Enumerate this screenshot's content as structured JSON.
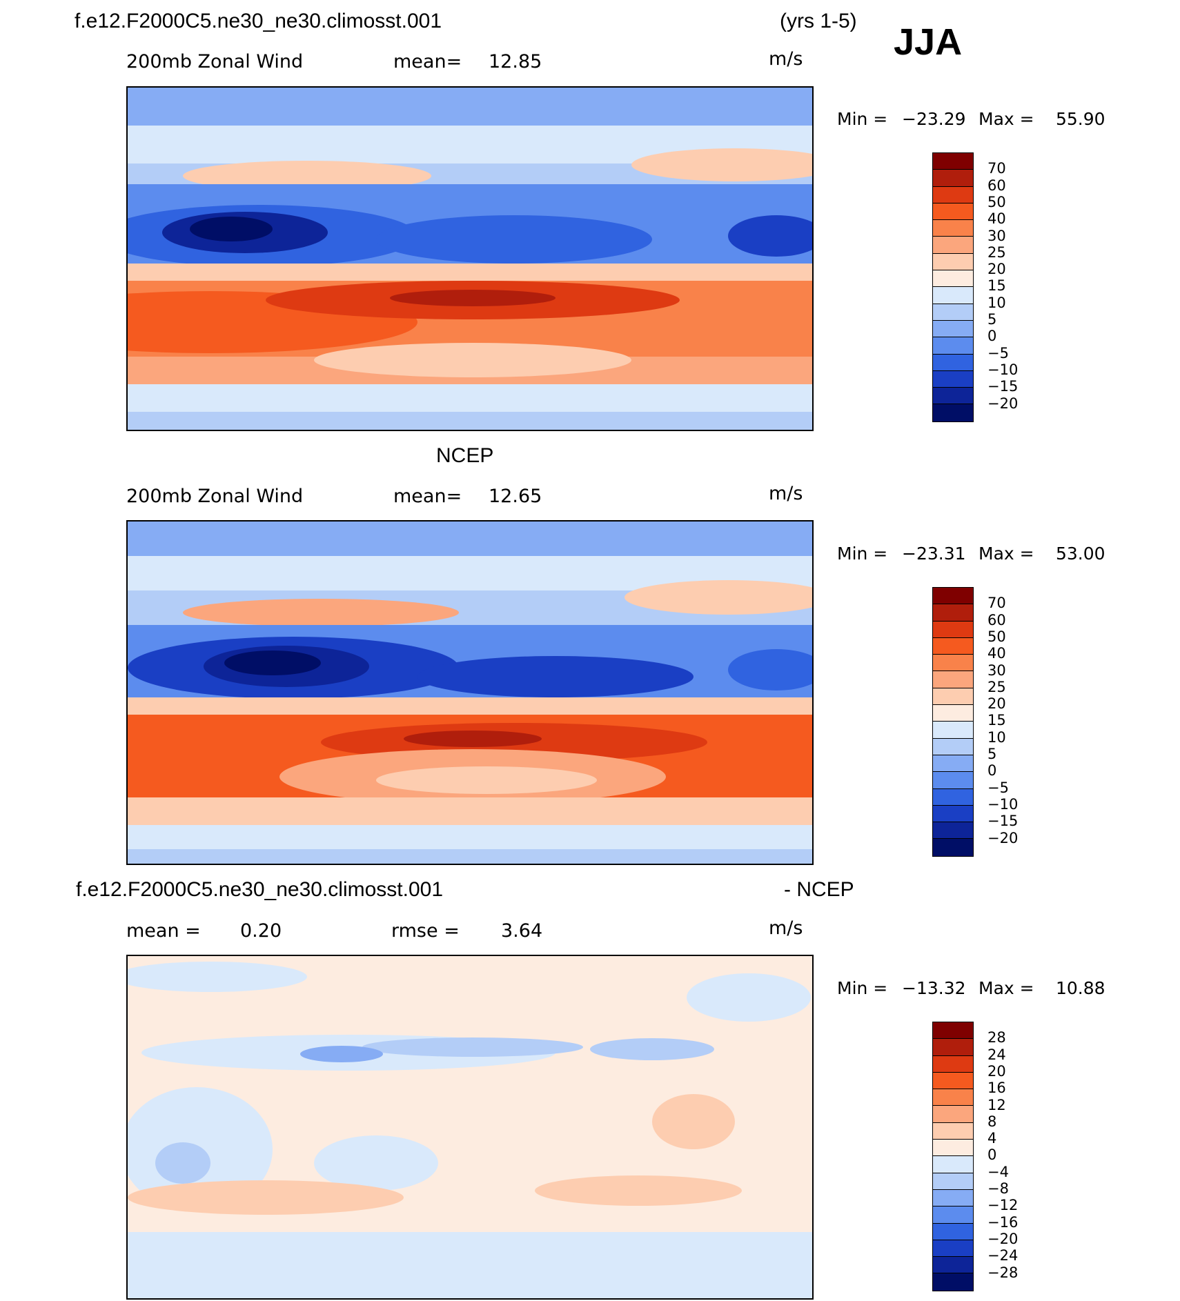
{
  "header": {
    "case_name": "f.e12.F2000C5.ne30_ne30.climosst.001",
    "years": "(yrs 1-5)",
    "season": "JJA"
  },
  "panels": [
    {
      "id": "model",
      "title": "",
      "variable": "200mb Zonal Wind",
      "mean_label": "mean=",
      "mean_value": "12.85",
      "units": "m/s",
      "min_label": "Min =",
      "min_value": "−23.29",
      "max_label": "Max =",
      "max_value": "55.90",
      "legend_labels": [
        "70",
        "60",
        "50",
        "40",
        "30",
        "25",
        "20",
        "15",
        "10",
        "5",
        "0",
        "−5",
        "−10",
        "−15",
        "−20"
      ],
      "legend_colors": [
        "#7f0000",
        "#b01e0c",
        "#de3a12",
        "#f55a1f",
        "#f9824a",
        "#fba67d",
        "#fdcdb0",
        "#fdece0",
        "#d9e9fb",
        "#b3cdf7",
        "#86acf4",
        "#5c8cee",
        "#3063e0",
        "#1a3fc4",
        "#0d2498",
        "#000e66"
      ]
    },
    {
      "id": "obs",
      "title": "NCEP",
      "variable": "200mb Zonal Wind",
      "mean_label": "mean=",
      "mean_value": "12.65",
      "units": "m/s",
      "min_label": "Min =",
      "min_value": "−23.31",
      "max_label": "Max =",
      "max_value": "53.00",
      "legend_labels": [
        "70",
        "60",
        "50",
        "40",
        "30",
        "25",
        "20",
        "15",
        "10",
        "5",
        "0",
        "−5",
        "−10",
        "−15",
        "−20"
      ],
      "legend_colors": [
        "#7f0000",
        "#b01e0c",
        "#de3a12",
        "#f55a1f",
        "#f9824a",
        "#fba67d",
        "#fdcdb0",
        "#fdece0",
        "#d9e9fb",
        "#b3cdf7",
        "#86acf4",
        "#5c8cee",
        "#3063e0",
        "#1a3fc4",
        "#0d2498",
        "#000e66"
      ]
    },
    {
      "id": "diff",
      "title_left": "f.e12.F2000C5.ne30_ne30.climosst.001",
      "title_right": "- NCEP",
      "mean_label": "mean =",
      "mean_value": "0.20",
      "rmse_label": "rmse =",
      "rmse_value": "3.64",
      "units": "m/s",
      "min_label": "Min =",
      "min_value": "−13.32",
      "max_label": "Max =",
      "max_value": "10.88",
      "legend_labels": [
        "28",
        "24",
        "20",
        "16",
        "12",
        "8",
        "4",
        "0",
        "−4",
        "−8",
        "−12",
        "−16",
        "−20",
        "−24",
        "−28"
      ],
      "legend_colors": [
        "#7f0000",
        "#b01e0c",
        "#de3a12",
        "#f55a1f",
        "#f9824a",
        "#fba67d",
        "#fdcdb0",
        "#fdece0",
        "#d9e9fb",
        "#b3cdf7",
        "#86acf4",
        "#5c8cee",
        "#3063e0",
        "#1a3fc4",
        "#0d2498",
        "#000e66"
      ]
    }
  ]
}
